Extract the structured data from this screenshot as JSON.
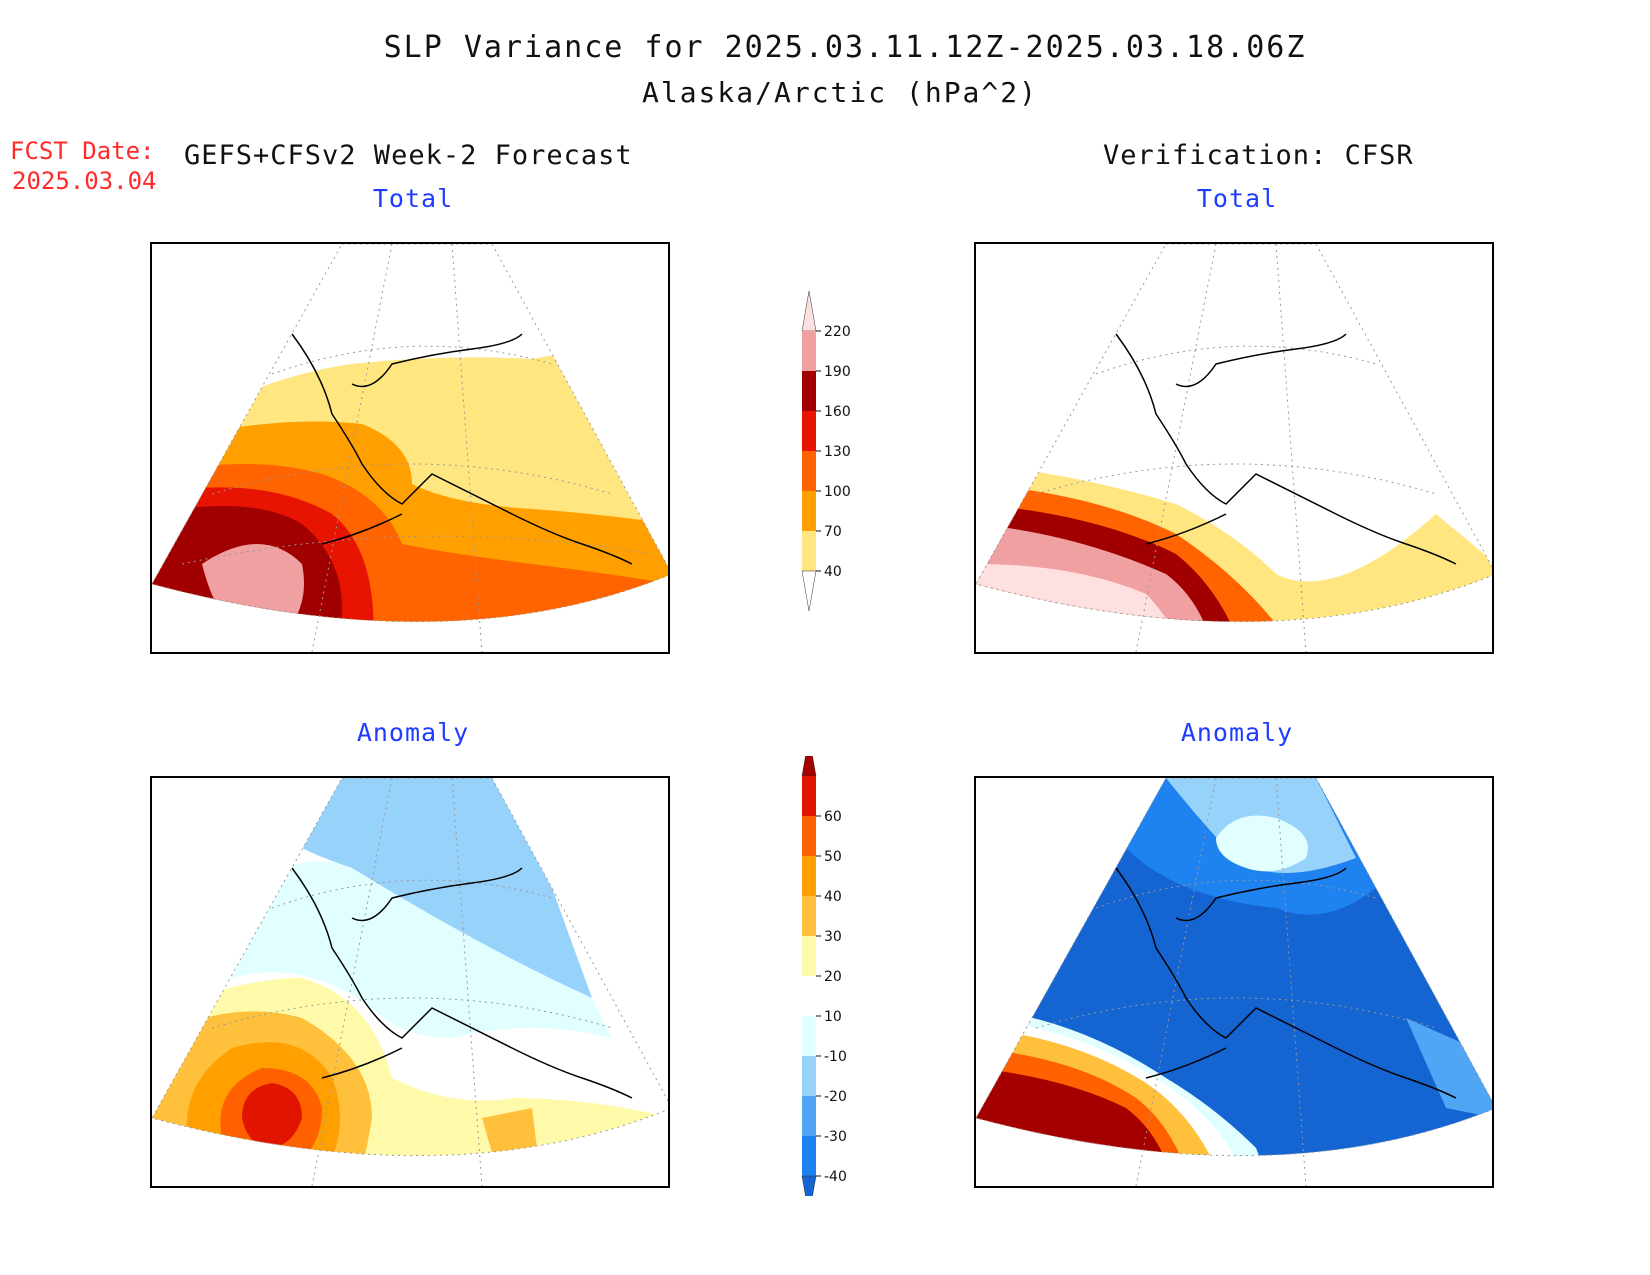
{
  "title": {
    "line1": "SLP Variance for 2025.03.11.12Z-2025.03.18.06Z",
    "line2": "Alaska/Arctic (hPa^2)"
  },
  "forecast": {
    "label": "FCST Date:",
    "date": "2025.03.04"
  },
  "columns": {
    "left": "GEFS+CFSv2 Week-2 Forecast",
    "right": "Verification: CFSR"
  },
  "panels": {
    "top_left": "Total",
    "top_right": "Total",
    "bottom_left": "Anomaly",
    "bottom_right": "Anomaly"
  },
  "colorbar_total": {
    "levels": [
      "40",
      "70",
      "100",
      "130",
      "160",
      "190",
      "220"
    ],
    "colors": [
      "#ffffff",
      "#ffe680",
      "#ffa000",
      "#ff6400",
      "#e61400",
      "#a00000",
      "#f0a0a0",
      "#ffe0e0"
    ]
  },
  "colorbar_anomaly": {
    "levels": [
      "-40",
      "-30",
      "-20",
      "-10",
      "10",
      "20",
      "30",
      "40",
      "50",
      "60"
    ],
    "colors": [
      "#1464d2",
      "#1e82f0",
      "#50a5f5",
      "#96d2fa",
      "#e1ffff",
      "#ffffff",
      "#fffaaa",
      "#ffc03c",
      "#ffa000",
      "#ff6000",
      "#e11400",
      "#a50000"
    ]
  }
}
